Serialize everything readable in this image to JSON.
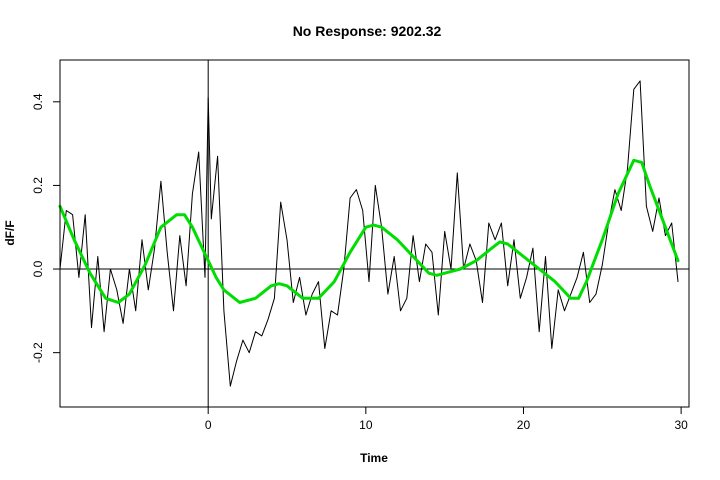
{
  "chart_data": {
    "type": "line",
    "title": "No Response: 9202.32",
    "xlabel": "Time",
    "ylabel": "dF/F",
    "xlim": [
      -9.4,
      30.5
    ],
    "ylim": [
      -0.33,
      0.5
    ],
    "x_ticks": [
      0,
      10,
      20,
      30
    ],
    "x_tick_labels": [
      "0",
      "10",
      "20",
      "30"
    ],
    "y_ticks": [
      -0.2,
      0.0,
      0.2,
      0.4
    ],
    "y_tick_labels": [
      "-0.2",
      "0.0",
      "0.2",
      "0.4"
    ],
    "grid": false,
    "legend": "none",
    "reference_lines": {
      "vertical_x": 0,
      "horizontal_y": 0
    },
    "series": [
      {
        "style": "raw",
        "color": "#000000",
        "x": [
          -9.4,
          -9.0,
          -8.6,
          -8.2,
          -7.8,
          -7.4,
          -7.0,
          -6.6,
          -6.2,
          -5.8,
          -5.4,
          -5.0,
          -4.6,
          -4.2,
          -3.8,
          -3.4,
          -3.0,
          -2.6,
          -2.2,
          -1.8,
          -1.4,
          -1.0,
          -0.6,
          -0.2,
          0.0,
          0.2,
          0.6,
          1.0,
          1.4,
          1.8,
          2.2,
          2.6,
          3.0,
          3.4,
          3.8,
          4.2,
          4.6,
          5.0,
          5.4,
          5.8,
          6.2,
          6.6,
          7.0,
          7.4,
          7.8,
          8.2,
          8.6,
          9.0,
          9.4,
          9.8,
          10.2,
          10.6,
          11.0,
          11.4,
          11.8,
          12.2,
          12.6,
          13.0,
          13.4,
          13.8,
          14.2,
          14.6,
          15.0,
          15.4,
          15.8,
          16.2,
          16.6,
          17.0,
          17.4,
          17.8,
          18.2,
          18.6,
          19.0,
          19.4,
          19.8,
          20.2,
          20.6,
          21.0,
          21.4,
          21.8,
          22.2,
          22.6,
          23.0,
          23.4,
          23.8,
          24.2,
          24.6,
          25.0,
          25.4,
          25.8,
          26.2,
          26.6,
          27.0,
          27.4,
          27.8,
          28.2,
          28.6,
          29.0,
          29.4,
          29.8
        ],
        "values": [
          0.0,
          0.14,
          0.13,
          -0.02,
          0.13,
          -0.14,
          0.03,
          -0.15,
          0.0,
          -0.05,
          -0.13,
          0.0,
          -0.1,
          0.07,
          -0.05,
          0.05,
          0.21,
          0.04,
          -0.1,
          0.08,
          -0.04,
          0.18,
          0.28,
          -0.02,
          0.41,
          0.12,
          0.27,
          -0.1,
          -0.28,
          -0.22,
          -0.17,
          -0.2,
          -0.15,
          -0.16,
          -0.12,
          -0.07,
          0.16,
          0.07,
          -0.08,
          -0.02,
          -0.11,
          -0.06,
          -0.03,
          -0.19,
          -0.1,
          -0.11,
          0.0,
          0.17,
          0.19,
          0.14,
          -0.03,
          0.2,
          0.1,
          -0.06,
          0.03,
          -0.1,
          -0.07,
          0.08,
          -0.03,
          0.06,
          0.04,
          -0.11,
          0.09,
          0.0,
          0.23,
          0.0,
          0.06,
          0.02,
          -0.08,
          0.11,
          0.07,
          0.11,
          -0.04,
          0.07,
          -0.07,
          -0.02,
          0.05,
          -0.15,
          0.03,
          -0.19,
          -0.05,
          -0.1,
          -0.06,
          -0.02,
          0.04,
          -0.08,
          -0.06,
          0.01,
          0.11,
          0.19,
          0.14,
          0.24,
          0.43,
          0.45,
          0.15,
          0.09,
          0.17,
          0.08,
          0.11,
          -0.03
        ]
      },
      {
        "style": "smoothed",
        "color": "#00dd00",
        "x": [
          -9.4,
          -8.5,
          -7.5,
          -6.5,
          -5.7,
          -5.0,
          -4.0,
          -3.0,
          -2.0,
          -1.5,
          -1.0,
          -0.5,
          0.0,
          0.5,
          1.0,
          2.0,
          3.0,
          4.0,
          4.5,
          5.0,
          6.0,
          7.0,
          8.0,
          9.0,
          10.0,
          10.5,
          11.0,
          12.0,
          13.0,
          14.0,
          14.5,
          15.0,
          16.0,
          17.0,
          18.0,
          18.5,
          19.0,
          20.0,
          21.0,
          22.0,
          23.0,
          23.5,
          24.0,
          25.0,
          26.0,
          27.0,
          27.5,
          28.0,
          29.0,
          29.8
        ],
        "values": [
          0.15,
          0.07,
          -0.01,
          -0.07,
          -0.08,
          -0.06,
          0.01,
          0.1,
          0.13,
          0.13,
          0.1,
          0.06,
          0.02,
          -0.02,
          -0.05,
          -0.08,
          -0.07,
          -0.04,
          -0.035,
          -0.04,
          -0.07,
          -0.07,
          -0.03,
          0.04,
          0.1,
          0.105,
          0.1,
          0.07,
          0.03,
          -0.01,
          -0.015,
          -0.01,
          0.0,
          0.02,
          0.05,
          0.065,
          0.06,
          0.03,
          0.0,
          -0.03,
          -0.07,
          -0.07,
          -0.03,
          0.07,
          0.18,
          0.26,
          0.255,
          0.2,
          0.1,
          0.02
        ]
      }
    ]
  }
}
